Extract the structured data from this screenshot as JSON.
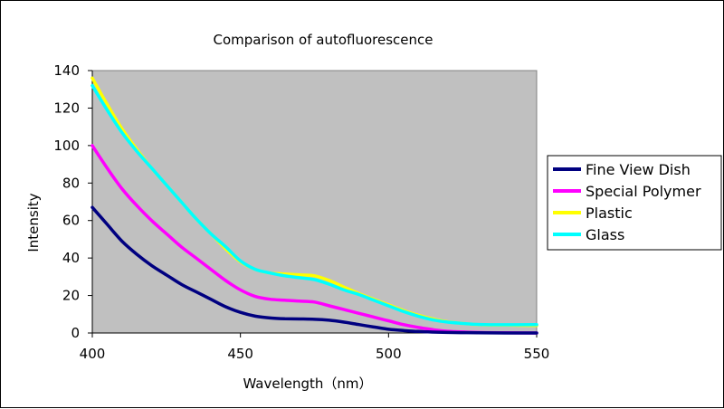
{
  "chart_data": {
    "type": "line",
    "title": "Comparison of autofluorescence",
    "xlabel": "Wavelength（nm）",
    "ylabel": "Intensity",
    "xlim": [
      400,
      550
    ],
    "ylim": [
      0,
      140
    ],
    "xticks": [
      "400",
      "450",
      "500",
      "550"
    ],
    "yticks": [
      "0",
      "20",
      "40",
      "60",
      "80",
      "100",
      "120",
      "140"
    ],
    "grid": false,
    "plot_background": "#c0c0c0",
    "legend_position": "right",
    "series": [
      {
        "name": "Fine View Dish",
        "color": "#000080",
        "x": [
          400,
          405,
          410,
          415,
          420,
          425,
          430,
          435,
          440,
          445,
          450,
          455,
          460,
          465,
          470,
          475,
          480,
          485,
          490,
          495,
          500,
          505,
          510,
          515,
          520,
          530,
          540,
          550
        ],
        "y": [
          67,
          58,
          49,
          42,
          36,
          31,
          26,
          22,
          18,
          14,
          11,
          9,
          8,
          7.6,
          7.5,
          7.3,
          6.8,
          5.8,
          4.5,
          3.2,
          2,
          1.3,
          0.8,
          0.5,
          0.3,
          0.1,
          0,
          0
        ]
      },
      {
        "name": "Special Polymer",
        "color": "#ff00ff",
        "x": [
          400,
          405,
          410,
          415,
          420,
          425,
          430,
          435,
          440,
          445,
          450,
          455,
          460,
          465,
          470,
          475,
          480,
          485,
          490,
          495,
          500,
          505,
          510,
          515,
          520,
          530,
          540,
          550
        ],
        "y": [
          100,
          88,
          77,
          68,
          60,
          53,
          46,
          40,
          34,
          28,
          23,
          19.5,
          18,
          17.5,
          17,
          16.5,
          14.5,
          12.5,
          10.5,
          8.5,
          6.5,
          4.5,
          3,
          1.8,
          0.9,
          0.3,
          0.1,
          0
        ]
      },
      {
        "name": "Plastic",
        "color": "#ffff00",
        "x": [
          400,
          405,
          410,
          415,
          420,
          425,
          430,
          435,
          440,
          445,
          450,
          455,
          460,
          465,
          470,
          475,
          480,
          485,
          490,
          495,
          500,
          505,
          510,
          515,
          520,
          530,
          540,
          550
        ],
        "y": [
          136,
          122,
          109,
          98,
          88,
          79,
          70,
          61,
          53,
          45,
          38,
          34,
          32,
          31.5,
          31,
          30.5,
          28,
          24.5,
          21,
          18,
          15,
          12,
          9.5,
          7.5,
          6,
          4.5,
          4.2,
          4
        ]
      },
      {
        "name": "Glass",
        "color": "#00ffff",
        "x": [
          400,
          405,
          410,
          415,
          420,
          425,
          430,
          435,
          440,
          445,
          450,
          455,
          460,
          465,
          470,
          475,
          480,
          485,
          490,
          495,
          500,
          505,
          510,
          515,
          520,
          530,
          540,
          550
        ],
        "y": [
          132,
          119,
          107,
          97,
          88,
          79,
          70,
          61,
          53,
          46,
          38.5,
          34,
          32,
          30.5,
          29.5,
          28.5,
          26,
          23,
          20.5,
          17.5,
          14.5,
          11.5,
          9,
          7,
          5.8,
          4.6,
          4.4,
          4.5
        ]
      }
    ]
  }
}
